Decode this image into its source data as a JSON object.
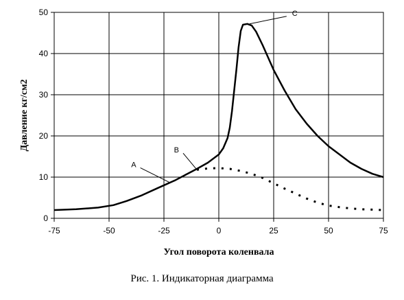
{
  "chart_data": {
    "type": "line",
    "xlabel": "Угол поворота коленвала",
    "ylabel": "Давление кг/см2",
    "xlim": [
      -75,
      75
    ],
    "ylim": [
      0,
      50
    ],
    "x_ticks": [
      -75,
      -50,
      -25,
      0,
      25,
      50,
      75
    ],
    "y_ticks": [
      0,
      10,
      20,
      30,
      40,
      50
    ],
    "grid": true,
    "series": [
      {
        "style": "solid",
        "points": [
          [
            -75,
            2.0
          ],
          [
            -65,
            2.2
          ],
          [
            -55,
            2.6
          ],
          [
            -48,
            3.2
          ],
          [
            -42,
            4.2
          ],
          [
            -35,
            5.6
          ],
          [
            -28,
            7.3
          ],
          [
            -20,
            9.2
          ],
          [
            -15,
            10.6
          ],
          [
            -10,
            12.0
          ],
          [
            -5,
            13.5
          ],
          [
            0,
            15.5
          ],
          [
            2,
            17.0
          ],
          [
            4,
            19.5
          ],
          [
            5,
            22.0
          ],
          [
            6,
            26.0
          ],
          [
            7,
            31.0
          ],
          [
            8,
            36.0
          ],
          [
            9,
            41.5
          ],
          [
            10,
            45.5
          ],
          [
            11,
            47.0
          ],
          [
            13,
            47.2
          ],
          [
            15,
            46.8
          ],
          [
            17,
            45.3
          ],
          [
            20,
            42.0
          ],
          [
            25,
            36.0
          ],
          [
            30,
            31.0
          ],
          [
            35,
            26.5
          ],
          [
            40,
            23.0
          ],
          [
            45,
            20.0
          ],
          [
            50,
            17.5
          ],
          [
            55,
            15.5
          ],
          [
            60,
            13.5
          ],
          [
            65,
            12.0
          ],
          [
            70,
            10.8
          ],
          [
            75,
            10.0
          ]
        ]
      },
      {
        "style": "dotted",
        "points": [
          [
            -10,
            11.8
          ],
          [
            -5,
            12.1
          ],
          [
            0,
            12.2
          ],
          [
            5,
            12.0
          ],
          [
            10,
            11.5
          ],
          [
            15,
            10.8
          ],
          [
            20,
            9.8
          ],
          [
            25,
            8.5
          ],
          [
            30,
            7.2
          ],
          [
            35,
            6.0
          ],
          [
            40,
            4.8
          ],
          [
            45,
            3.8
          ],
          [
            50,
            3.1
          ],
          [
            55,
            2.7
          ],
          [
            60,
            2.4
          ],
          [
            65,
            2.2
          ],
          [
            70,
            2.1
          ],
          [
            75,
            2.0
          ]
        ]
      }
    ],
    "annotations": [
      {
        "text": "A",
        "point": [
          -22,
          8.6
        ]
      },
      {
        "text": "B",
        "point": [
          -10,
          11.8
        ]
      },
      {
        "text": "C",
        "point": [
          14,
          47.2
        ]
      }
    ]
  },
  "caption": "Рис. 1. Индикаторная диаграмма"
}
